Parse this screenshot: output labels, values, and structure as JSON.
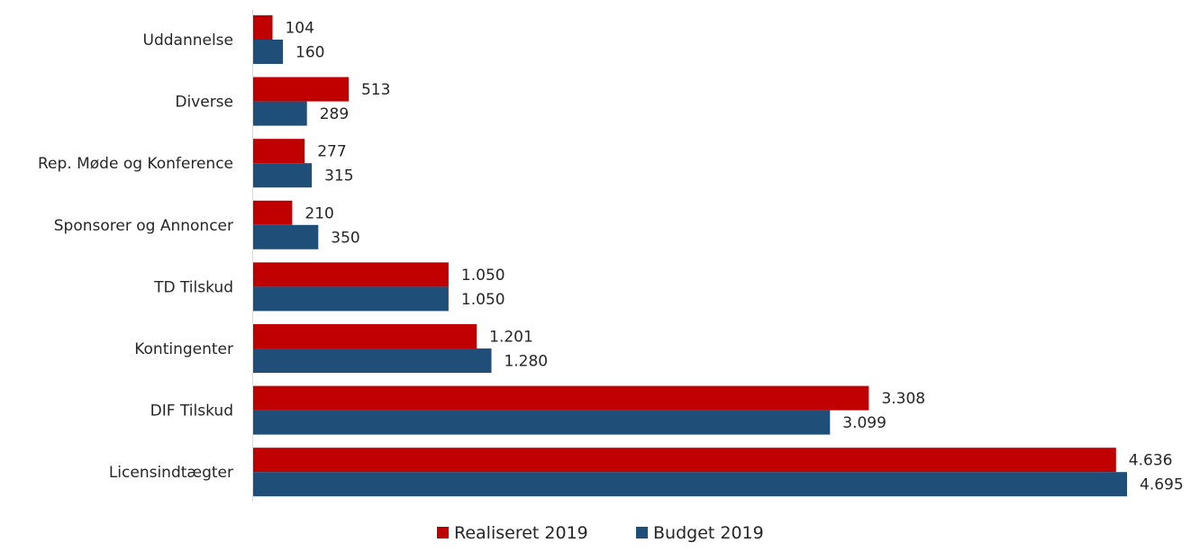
{
  "chart_data": {
    "type": "bar",
    "orientation": "horizontal",
    "categories": [
      "Uddannelse",
      "Diverse",
      "Rep. Møde og Konference",
      "Sponsorer og Annoncer",
      "TD Tilskud",
      "Kontingenter",
      "DIF Tilskud",
      "Licensindtægter"
    ],
    "series": [
      {
        "name": "Realiseret 2019",
        "color": "#c00000",
        "values": [
          104,
          513,
          277,
          210,
          1050,
          1201,
          3308,
          4636
        ],
        "labels": [
          "104",
          "513",
          "277",
          "210",
          "1.050",
          "1.201",
          "3.308",
          "4.636"
        ]
      },
      {
        "name": "Budget 2019",
        "color": "#1f4e79",
        "values": [
          160,
          289,
          315,
          350,
          1050,
          1280,
          3099,
          4695
        ],
        "labels": [
          "160",
          "289",
          "315",
          "350",
          "1.050",
          "1.280",
          "3.099",
          "4.695"
        ]
      }
    ],
    "xlim": [
      0,
      4695
    ],
    "grid": false,
    "legend_position": "bottom"
  }
}
